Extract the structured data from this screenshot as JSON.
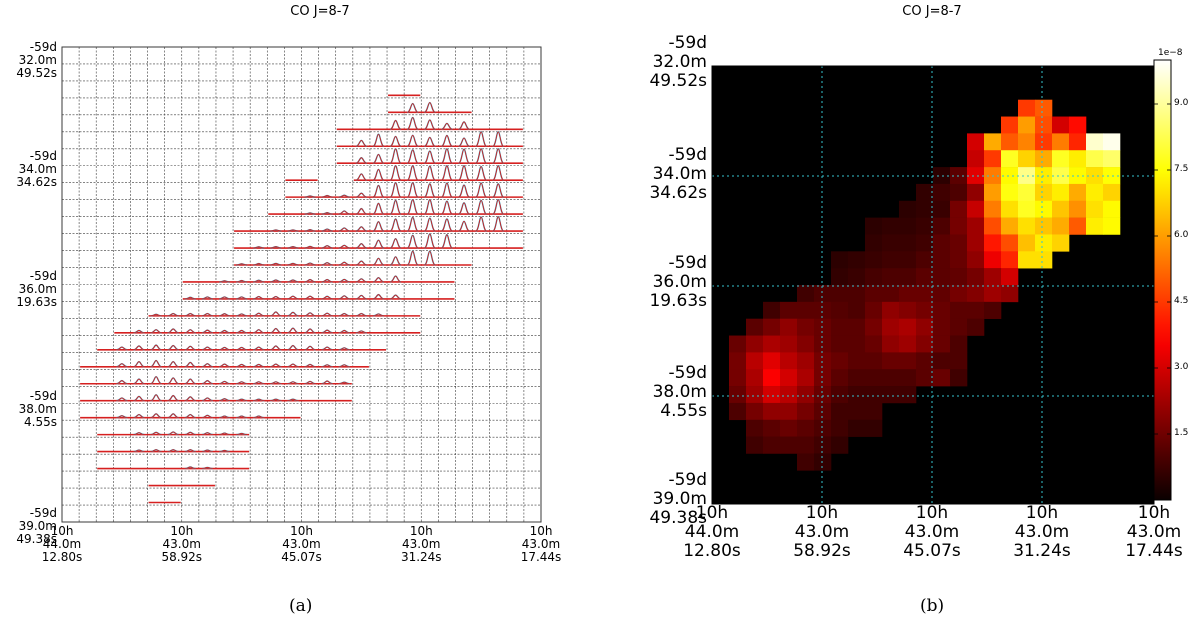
{
  "panel_a": {
    "caption": "(a)",
    "chart_data": {
      "type": "spectral grid map",
      "title": "CO J=8-7",
      "ra_tick_labels": [
        "10h\n44.0m\n12.80s",
        "10h\n43.0m\n58.92s",
        "10h\n43.0m\n45.07s",
        "10h\n43.0m\n31.24s",
        "10h\n43.0m\n17.44s"
      ],
      "dec_tick_labels": [
        "-59d\n32.0m\n49.52s",
        "-59d\n34.0m\n34.62s",
        "-59d\n36.0m\n19.63s",
        "-59d\n38.0m\n4.55s",
        "-59d\n39.0m\n49.38s"
      ],
      "grid": {
        "cols": 28,
        "rows": 28
      },
      "spectra_runs": [
        {
          "row": 2,
          "col_start": 19,
          "col_end": 20
        },
        {
          "row": 3,
          "col_start": 19,
          "col_end": 23
        },
        {
          "row": 4,
          "col_start": 16,
          "col_end": 26
        },
        {
          "row": 5,
          "col_start": 16,
          "col_end": 26
        },
        {
          "row": 6,
          "col_start": 16,
          "col_end": 26
        },
        {
          "row": 7,
          "col_start": 13,
          "col_end": 14
        },
        {
          "row": 7,
          "col_start": 17,
          "col_end": 26
        },
        {
          "row": 8,
          "col_start": 13,
          "col_end": 26
        },
        {
          "row": 9,
          "col_start": 12,
          "col_end": 26
        },
        {
          "row": 10,
          "col_start": 10,
          "col_end": 26
        },
        {
          "row": 11,
          "col_start": 10,
          "col_end": 26
        },
        {
          "row": 12,
          "col_start": 10,
          "col_end": 23
        },
        {
          "row": 13,
          "col_start": 7,
          "col_end": 22
        },
        {
          "row": 14,
          "col_start": 7,
          "col_end": 22
        },
        {
          "row": 15,
          "col_start": 5,
          "col_end": 20
        },
        {
          "row": 16,
          "col_start": 3,
          "col_end": 20
        },
        {
          "row": 17,
          "col_start": 2,
          "col_end": 18
        },
        {
          "row": 18,
          "col_start": 1,
          "col_end": 17
        },
        {
          "row": 19,
          "col_start": 1,
          "col_end": 16
        },
        {
          "row": 20,
          "col_start": 1,
          "col_end": 16
        },
        {
          "row": 21,
          "col_start": 1,
          "col_end": 13
        },
        {
          "row": 22,
          "col_start": 2,
          "col_end": 10
        },
        {
          "row": 23,
          "col_start": 2,
          "col_end": 10
        },
        {
          "row": 24,
          "col_start": 2,
          "col_end": 10
        },
        {
          "row": 25,
          "col_start": 5,
          "col_end": 8
        },
        {
          "row": 26,
          "col_start": 5,
          "col_end": 6
        }
      ],
      "line_colors": {
        "spectrum": "#d62020",
        "fit": "#2aa8c8",
        "grid": "#3a3a3a"
      }
    }
  },
  "panel_b": {
    "caption": "(b)",
    "chart_data": {
      "type": "heatmap",
      "title": "CO J=8-7",
      "colormap": "hot",
      "colorbar": {
        "vmin": 0,
        "vmax": 1e-07,
        "multiplier_label": "1e−8",
        "ticks": [
          1.5,
          3.0,
          4.5,
          6.0,
          7.5,
          9.0
        ]
      },
      "ra_tick_labels": [
        "10h\n44.0m\n12.80s",
        "10h\n43.0m\n58.92s",
        "10h\n43.0m\n45.07s",
        "10h\n43.0m\n31.24s",
        "10h\n43.0m\n17.44s"
      ],
      "dec_tick_labels": [
        "-59d\n32.0m\n49.52s",
        "-59d\n34.0m\n34.62s",
        "-59d\n36.0m\n19.63s",
        "-59d\n38.0m\n4.55s",
        "-59d\n39.0m\n49.38s"
      ],
      "grid_style": "dotted cyan",
      "pixel_grid": {
        "cols": 26,
        "rows": 26
      },
      "intensity_rows": [
        {
          "row": 2,
          "values": {
            "18": 0.45,
            "19": 0.5
          }
        },
        {
          "row": 3,
          "values": {
            "17": 0.45,
            "18": 0.6,
            "19": 0.48,
            "20": 0.3,
            "21": 0.38
          }
        },
        {
          "row": 4,
          "values": {
            "15": 0.3,
            "16": 0.62,
            "17": 0.5,
            "18": 0.56,
            "19": 0.45,
            "20": 0.55,
            "21": 0.42,
            "22": 0.95,
            "23": 0.98
          }
        },
        {
          "row": 5,
          "values": {
            "15": 0.28,
            "16": 0.45,
            "17": 0.78,
            "18": 0.68,
            "19": 0.62,
            "20": 0.78,
            "21": 0.72,
            "22": 0.82,
            "23": 0.85
          }
        },
        {
          "row": 6,
          "values": {
            "13": 0.05,
            "14": 0.12,
            "15": 0.32,
            "16": 0.55,
            "17": 0.74,
            "18": 0.88,
            "19": 0.72,
            "20": 0.82,
            "21": 0.74,
            "22": 0.7,
            "23": 0.75
          }
        },
        {
          "row": 7,
          "values": {
            "12": 0.06,
            "13": 0.08,
            "14": 0.1,
            "15": 0.2,
            "16": 0.6,
            "17": 0.76,
            "18": 0.8,
            "19": 0.68,
            "20": 0.72,
            "21": 0.62,
            "22": 0.72,
            "23": 0.68
          }
        },
        {
          "row": 8,
          "values": {
            "11": 0.05,
            "12": 0.06,
            "13": 0.07,
            "14": 0.16,
            "15": 0.28,
            "16": 0.55,
            "17": 0.7,
            "18": 0.78,
            "19": 0.74,
            "20": 0.66,
            "21": 0.58,
            "22": 0.7,
            "23": 0.74
          }
        },
        {
          "row": 9,
          "values": {
            "9": 0.05,
            "10": 0.06,
            "11": 0.06,
            "12": 0.07,
            "13": 0.1,
            "14": 0.16,
            "15": 0.22,
            "16": 0.48,
            "17": 0.62,
            "18": 0.7,
            "19": 0.66,
            "20": 0.62,
            "21": 0.5,
            "22": 0.72,
            "23": 0.74
          }
        },
        {
          "row": 10,
          "values": {
            "9": 0.06,
            "10": 0.07,
            "11": 0.07,
            "12": 0.08,
            "13": 0.12,
            "14": 0.14,
            "15": 0.22,
            "16": 0.4,
            "17": 0.48,
            "18": 0.65,
            "19": 0.72,
            "20": 0.68
          }
        },
        {
          "row": 11,
          "values": {
            "7": 0.05,
            "8": 0.06,
            "9": 0.07,
            "10": 0.08,
            "11": 0.08,
            "12": 0.1,
            "13": 0.12,
            "14": 0.14,
            "15": 0.2,
            "16": 0.34,
            "17": 0.42,
            "18": 0.7,
            "19": 0.7
          }
        },
        {
          "row": 12,
          "values": {
            "7": 0.06,
            "8": 0.07,
            "9": 0.09,
            "10": 0.1,
            "11": 0.1,
            "12": 0.12,
            "13": 0.12,
            "14": 0.13,
            "15": 0.16,
            "16": 0.22,
            "17": 0.3
          }
        },
        {
          "row": 13,
          "values": {
            "5": 0.08,
            "6": 0.1,
            "7": 0.1,
            "8": 0.1,
            "9": 0.12,
            "10": 0.12,
            "11": 0.14,
            "12": 0.14,
            "13": 0.13,
            "14": 0.16,
            "15": 0.18,
            "16": 0.22,
            "17": 0.2
          }
        },
        {
          "row": 14,
          "values": {
            "3": 0.08,
            "4": 0.12,
            "5": 0.12,
            "6": 0.12,
            "7": 0.11,
            "8": 0.1,
            "9": 0.14,
            "10": 0.2,
            "11": 0.18,
            "12": 0.16,
            "13": 0.14,
            "14": 0.12,
            "15": 0.12,
            "16": 0.1
          }
        },
        {
          "row": 15,
          "values": {
            "2": 0.12,
            "3": 0.16,
            "4": 0.2,
            "5": 0.16,
            "6": 0.14,
            "7": 0.12,
            "8": 0.12,
            "9": 0.16,
            "10": 0.22,
            "11": 0.24,
            "12": 0.2,
            "13": 0.14,
            "14": 0.12,
            "15": 0.1
          }
        },
        {
          "row": 16,
          "values": {
            "1": 0.14,
            "2": 0.2,
            "3": 0.24,
            "4": 0.22,
            "5": 0.18,
            "6": 0.14,
            "7": 0.12,
            "8": 0.12,
            "9": 0.14,
            "10": 0.2,
            "11": 0.22,
            "12": 0.18,
            "13": 0.14,
            "14": 0.1
          }
        },
        {
          "row": 17,
          "values": {
            "1": 0.16,
            "2": 0.26,
            "3": 0.32,
            "4": 0.26,
            "5": 0.22,
            "6": 0.16,
            "7": 0.14,
            "8": 0.12,
            "9": 0.12,
            "10": 0.14,
            "11": 0.14,
            "12": 0.12,
            "13": 0.1,
            "14": 0.1
          }
        },
        {
          "row": 18,
          "values": {
            "1": 0.16,
            "2": 0.24,
            "3": 0.36,
            "4": 0.3,
            "5": 0.24,
            "6": 0.16,
            "7": 0.12,
            "8": 0.1,
            "9": 0.1,
            "10": 0.1,
            "11": 0.1,
            "12": 0.12,
            "13": 0.14,
            "14": 0.08
          }
        },
        {
          "row": 19,
          "values": {
            "1": 0.14,
            "2": 0.22,
            "3": 0.3,
            "4": 0.26,
            "5": 0.2,
            "6": 0.14,
            "7": 0.1,
            "8": 0.08,
            "9": 0.08,
            "10": 0.08,
            "11": 0.08
          }
        },
        {
          "row": 20,
          "values": {
            "1": 0.1,
            "2": 0.16,
            "3": 0.2,
            "4": 0.2,
            "5": 0.16,
            "6": 0.12,
            "7": 0.08,
            "8": 0.08,
            "9": 0.08
          }
        },
        {
          "row": 21,
          "values": {
            "2": 0.1,
            "3": 0.12,
            "4": 0.14,
            "5": 0.12,
            "6": 0.1,
            "7": 0.08,
            "8": 0.06,
            "9": 0.06
          }
        },
        {
          "row": 22,
          "values": {
            "2": 0.08,
            "3": 0.1,
            "4": 0.1,
            "5": 0.1,
            "6": 0.08,
            "7": 0.06
          }
        },
        {
          "row": 23,
          "values": {
            "5": 0.08,
            "6": 0.06
          }
        }
      ]
    }
  }
}
